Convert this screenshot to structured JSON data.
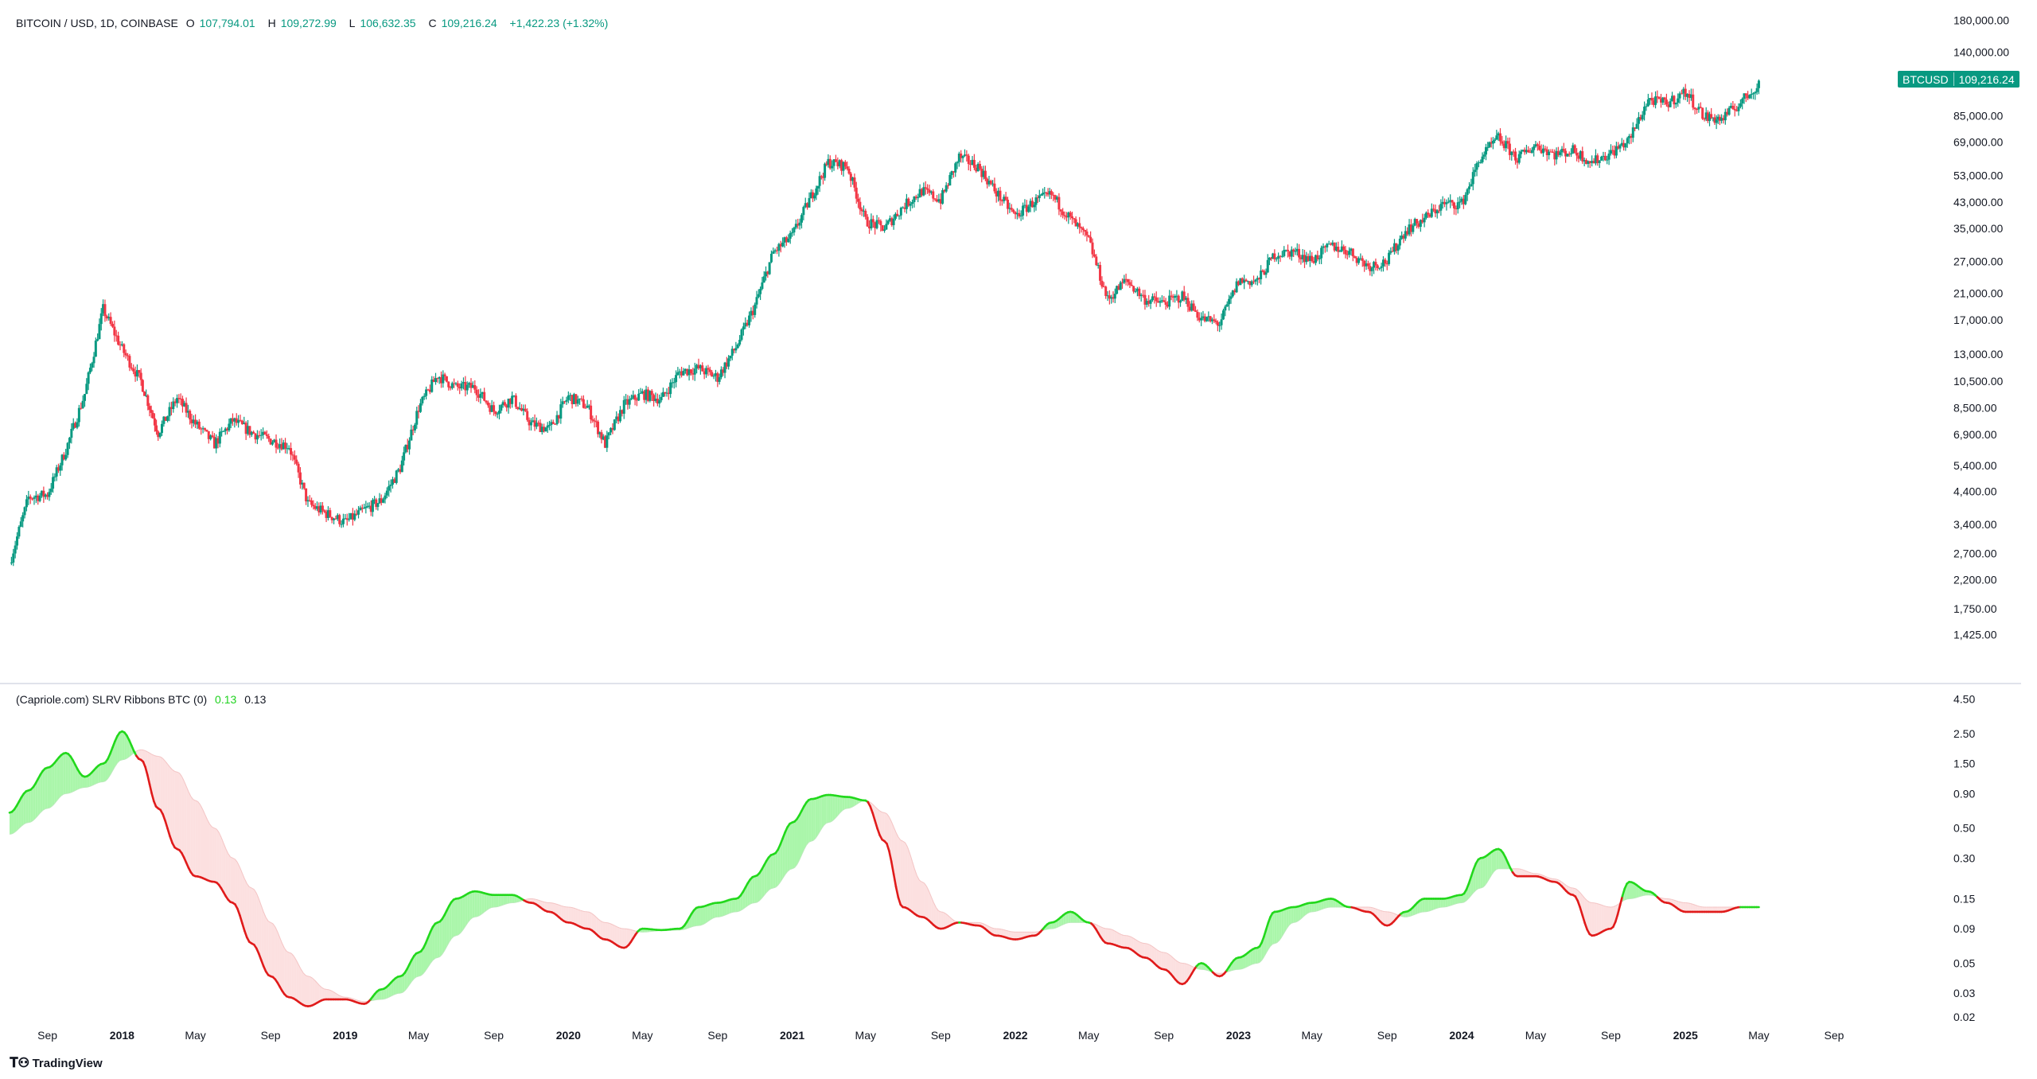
{
  "header": {
    "symbol": "BITCOIN / USD, 1D, COINBASE",
    "o_label": "O",
    "o_value": "107,794.01",
    "h_label": "H",
    "h_value": "109,272.99",
    "l_label": "L",
    "l_value": "106,632.35",
    "c_label": "C",
    "c_value": "109,216.24",
    "change": "+1,422.23 (+1.32%)"
  },
  "price_tag": {
    "symbol": "BTCUSD",
    "value": "109,216.24"
  },
  "indicator_legend": {
    "name": "(Capriole.com) SLRV Ribbons BTC (0)",
    "value1": "0.13",
    "value2": "0.13"
  },
  "branding": {
    "logo_text": "TradingView"
  },
  "colors": {
    "up": "#089981",
    "down": "#f23645",
    "ribbon_up_line": "#22d81c",
    "ribbon_down_line": "#e01b1b",
    "ribbon_up_fill": "#9bf59b",
    "ribbon_down_fill": "#fbd3d3"
  },
  "chart_data": [
    {
      "type": "candlestick",
      "title": "BITCOIN / USD, 1D, COINBASE",
      "y_scale": "log",
      "ylim": [
        1200,
        190000
      ],
      "y_ticks": [
        "180,000.00",
        "140,000.00",
        "85,000.00",
        "69,000.00",
        "53,000.00",
        "43,000.00",
        "35,000.00",
        "27,000.00",
        "21,000.00",
        "17,000.00",
        "13,000.00",
        "10,500.00",
        "8,500.00",
        "6,900.00",
        "5,400.00",
        "4,400.00",
        "3,400.00",
        "2,700.00",
        "2,200.00",
        "1,750.00",
        "1,425.00"
      ],
      "series": [
        {
          "name": "BTCUSD",
          "x": [
            "2017-07",
            "2017-08",
            "2017-09",
            "2017-10",
            "2017-11",
            "2017-12",
            "2018-01",
            "2018-02",
            "2018-03",
            "2018-04",
            "2018-05",
            "2018-06",
            "2018-07",
            "2018-08",
            "2018-09",
            "2018-10",
            "2018-11",
            "2018-12",
            "2019-01",
            "2019-02",
            "2019-03",
            "2019-04",
            "2019-05",
            "2019-06",
            "2019-07",
            "2019-08",
            "2019-09",
            "2019-10",
            "2019-11",
            "2019-12",
            "2020-01",
            "2020-02",
            "2020-03",
            "2020-04",
            "2020-05",
            "2020-06",
            "2020-07",
            "2020-08",
            "2020-09",
            "2020-10",
            "2020-11",
            "2020-12",
            "2021-01",
            "2021-02",
            "2021-03",
            "2021-04",
            "2021-05",
            "2021-06",
            "2021-07",
            "2021-08",
            "2021-09",
            "2021-10",
            "2021-11",
            "2021-12",
            "2022-01",
            "2022-02",
            "2022-03",
            "2022-04",
            "2022-05",
            "2022-06",
            "2022-07",
            "2022-08",
            "2022-09",
            "2022-10",
            "2022-11",
            "2022-12",
            "2023-01",
            "2023-02",
            "2023-03",
            "2023-04",
            "2023-05",
            "2023-06",
            "2023-07",
            "2023-08",
            "2023-09",
            "2023-10",
            "2023-11",
            "2023-12",
            "2024-01",
            "2024-02",
            "2024-03",
            "2024-04",
            "2024-05",
            "2024-06",
            "2024-07",
            "2024-08",
            "2024-09",
            "2024-10",
            "2024-11",
            "2024-12",
            "2025-01",
            "2025-02",
            "2025-03",
            "2025-04",
            "2025-05"
          ],
          "values": [
            2500,
            4200,
            4300,
            6100,
            9500,
            18500,
            13500,
            10500,
            7000,
            9200,
            7500,
            6400,
            7700,
            7000,
            6600,
            6300,
            4000,
            3700,
            3450,
            3800,
            4100,
            5300,
            8500,
            11000,
            10000,
            10000,
            8300,
            9200,
            7500,
            7200,
            9300,
            8600,
            6400,
            8700,
            9500,
            9100,
            11300,
            11600,
            10800,
            13700,
            19000,
            28900,
            33000,
            45000,
            58800,
            57000,
            37000,
            35000,
            41500,
            47000,
            43800,
            61300,
            57000,
            46300,
            38500,
            43200,
            45500,
            37700,
            31800,
            19900,
            23300,
            20000,
            19400,
            20500,
            17200,
            16500,
            23100,
            23100,
            28500,
            29200,
            27200,
            30500,
            29200,
            26000,
            27000,
            34500,
            37700,
            42300,
            42500,
            61200,
            71300,
            60600,
            67500,
            62700,
            64600,
            59000,
            63300,
            70200,
            96400,
            93400,
            102400,
            84300,
            82500,
            94200,
            109216
          ],
          "last": 109216.24
        }
      ],
      "x_ticks": [
        "Sep",
        "2018",
        "May",
        "Sep",
        "2019",
        "May",
        "Sep",
        "2020",
        "May",
        "Sep",
        "2021",
        "May",
        "Sep",
        "2022",
        "May",
        "Sep",
        "2023",
        "May",
        "Sep",
        "2024",
        "May",
        "Sep",
        "2025",
        "May",
        "Sep"
      ]
    },
    {
      "type": "area",
      "title": "(Capriole.com) SLRV Ribbons BTC (0)",
      "y_scale": "log",
      "ylim": [
        0.017,
        5.2
      ],
      "y_ticks": [
        "4.50",
        "2.50",
        "1.50",
        "0.90",
        "0.50",
        "0.30",
        "0.15",
        "0.09",
        "0.05",
        "0.03",
        "0.02"
      ],
      "x": [
        "2017-07",
        "2017-08",
        "2017-09",
        "2017-10",
        "2017-11",
        "2017-12",
        "2018-01",
        "2018-02",
        "2018-03",
        "2018-04",
        "2018-05",
        "2018-06",
        "2018-07",
        "2018-08",
        "2018-09",
        "2018-10",
        "2018-11",
        "2018-12",
        "2019-01",
        "2019-02",
        "2019-03",
        "2019-04",
        "2019-05",
        "2019-06",
        "2019-07",
        "2019-08",
        "2019-09",
        "2019-10",
        "2019-11",
        "2019-12",
        "2020-01",
        "2020-02",
        "2020-03",
        "2020-04",
        "2020-05",
        "2020-06",
        "2020-07",
        "2020-08",
        "2020-09",
        "2020-10",
        "2020-11",
        "2020-12",
        "2021-01",
        "2021-02",
        "2021-03",
        "2021-04",
        "2021-05",
        "2021-06",
        "2021-07",
        "2021-08",
        "2021-09",
        "2021-10",
        "2021-11",
        "2021-12",
        "2022-01",
        "2022-02",
        "2022-03",
        "2022-04",
        "2022-05",
        "2022-06",
        "2022-07",
        "2022-08",
        "2022-09",
        "2022-10",
        "2022-11",
        "2022-12",
        "2023-01",
        "2023-02",
        "2023-03",
        "2023-04",
        "2023-05",
        "2023-06",
        "2023-07",
        "2023-08",
        "2023-09",
        "2023-10",
        "2023-11",
        "2023-12",
        "2024-01",
        "2024-02",
        "2024-03",
        "2024-04",
        "2024-05",
        "2024-06",
        "2024-07",
        "2024-08",
        "2024-09",
        "2024-10",
        "2024-11",
        "2024-12",
        "2025-01",
        "2025-02",
        "2025-03",
        "2025-04",
        "2025-05"
      ],
      "series": [
        {
          "values": [
            0.65,
            0.95,
            1.4,
            1.8,
            1.2,
            1.5,
            2.6,
            1.6,
            0.7,
            0.35,
            0.22,
            0.2,
            0.14,
            0.07,
            0.04,
            0.028,
            0.024,
            0.027,
            0.027,
            0.025,
            0.032,
            0.04,
            0.06,
            0.1,
            0.15,
            0.17,
            0.16,
            0.16,
            0.14,
            0.12,
            0.1,
            0.09,
            0.075,
            0.065,
            0.09,
            0.088,
            0.09,
            0.13,
            0.14,
            0.15,
            0.22,
            0.32,
            0.55,
            0.82,
            0.88,
            0.85,
            0.8,
            0.4,
            0.13,
            0.11,
            0.09,
            0.1,
            0.095,
            0.08,
            0.075,
            0.08,
            0.1,
            0.12,
            0.1,
            0.07,
            0.065,
            0.055,
            0.045,
            0.035,
            0.05,
            0.04,
            0.055,
            0.065,
            0.12,
            0.13,
            0.14,
            0.15,
            0.13,
            0.12,
            0.095,
            0.12,
            0.15,
            0.15,
            0.16,
            0.3,
            0.35,
            0.22,
            0.22,
            0.2,
            0.16,
            0.08,
            0.09,
            0.2,
            0.17,
            0.14,
            0.12,
            0.12,
            0.12,
            0.13,
            0.13
          ]
        },
        {
          "values": [
            0.45,
            0.55,
            0.7,
            0.9,
            1.0,
            1.1,
            1.6,
            1.9,
            1.7,
            1.3,
            0.8,
            0.5,
            0.3,
            0.18,
            0.1,
            0.06,
            0.04,
            0.032,
            0.028,
            0.026,
            0.027,
            0.03,
            0.04,
            0.055,
            0.08,
            0.11,
            0.13,
            0.14,
            0.15,
            0.14,
            0.13,
            0.12,
            0.1,
            0.09,
            0.085,
            0.087,
            0.088,
            0.095,
            0.11,
            0.12,
            0.14,
            0.18,
            0.25,
            0.4,
            0.55,
            0.7,
            0.8,
            0.65,
            0.4,
            0.2,
            0.12,
            0.1,
            0.1,
            0.09,
            0.085,
            0.085,
            0.09,
            0.1,
            0.1,
            0.09,
            0.08,
            0.07,
            0.06,
            0.05,
            0.045,
            0.042,
            0.045,
            0.05,
            0.07,
            0.1,
            0.12,
            0.13,
            0.13,
            0.13,
            0.12,
            0.11,
            0.12,
            0.13,
            0.14,
            0.18,
            0.25,
            0.25,
            0.23,
            0.21,
            0.18,
            0.14,
            0.13,
            0.15,
            0.16,
            0.15,
            0.14,
            0.13,
            0.13,
            0.13,
            0.13
          ]
        }
      ],
      "last": 0.13,
      "x_ticks": [
        "Sep",
        "2018",
        "May",
        "Sep",
        "2019",
        "May",
        "Sep",
        "2020",
        "May",
        "Sep",
        "2021",
        "May",
        "Sep",
        "2022",
        "May",
        "Sep",
        "2023",
        "May",
        "Sep",
        "2024",
        "May",
        "Sep",
        "2025",
        "May",
        "Sep"
      ]
    }
  ]
}
